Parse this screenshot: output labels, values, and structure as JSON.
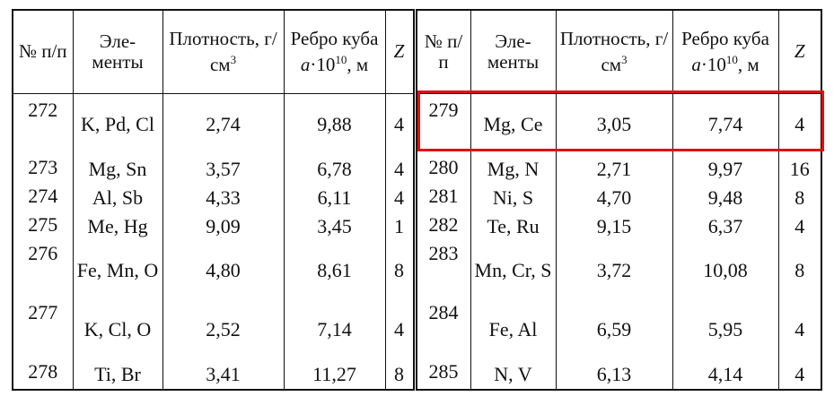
{
  "header": {
    "num": "№ п/п",
    "elements": "Эле-менты",
    "density": {
      "text": "Плотность, г/см",
      "sup": "3"
    },
    "edge": {
      "text": "Ребро куба",
      "var": "a",
      "mult": "·10",
      "sup": "10",
      "unit": ", м"
    },
    "z": "Z"
  },
  "rows": [
    {
      "left": [
        "272",
        "K, Pd, Cl",
        "2,74",
        "9,88",
        "4"
      ],
      "right": [
        "279",
        "Mg, Ce",
        "3,05",
        "7,74",
        "4"
      ]
    },
    {
      "left": [
        "273",
        "Mg, Sn",
        "3,57",
        "6,78",
        "4"
      ],
      "right": [
        "280",
        "Mg, N",
        "2,71",
        "9,97",
        "16"
      ]
    },
    {
      "left": [
        "274",
        "Al, Sb",
        "4,33",
        "6,11",
        "4"
      ],
      "right": [
        "281",
        "Ni, S",
        "4,70",
        "9,48",
        "8"
      ]
    },
    {
      "left": [
        "275",
        "Me, Hg",
        "9,09",
        "3,45",
        "1"
      ],
      "right": [
        "282",
        "Te, Ru",
        "9,15",
        "6,37",
        "4"
      ]
    },
    {
      "left": [
        "276",
        "Fe, Mn, O",
        "4,80",
        "8,61",
        "8"
      ],
      "right": [
        "283",
        "Mn, Cr, S",
        "3,72",
        "10,08",
        "8"
      ]
    },
    {
      "left": [
        "277",
        "K, Cl, O",
        "2,52",
        "7,14",
        "4"
      ],
      "right": [
        "284",
        "Fe, Al",
        "6,59",
        "5,95",
        "4"
      ]
    },
    {
      "left": [
        "278",
        "Ti, Br",
        "3,41",
        "11,27",
        "8"
      ],
      "right": [
        "285",
        "N, V",
        "6,13",
        "4,14",
        "4"
      ]
    }
  ]
}
